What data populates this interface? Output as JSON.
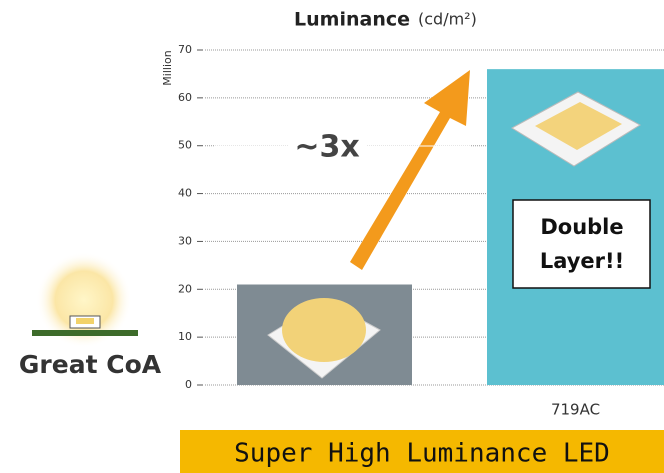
{
  "chart_data": {
    "type": "bar",
    "title": "Luminance",
    "unit": "(cd/m²)",
    "y_label": "Million",
    "categories": [
      null,
      "719AC"
    ],
    "values": [
      21,
      66
    ],
    "colors": [
      "#7f8b93",
      "#5cc0d0"
    ],
    "ylim": [
      0,
      70
    ],
    "yticks": [
      0,
      10,
      20,
      30,
      40,
      50,
      60,
      70
    ],
    "grid": true,
    "annotations": [
      "~3x",
      "Double",
      "Layer!!"
    ],
    "side_label": "Great CoA",
    "banner": "Super High Luminance LED"
  }
}
